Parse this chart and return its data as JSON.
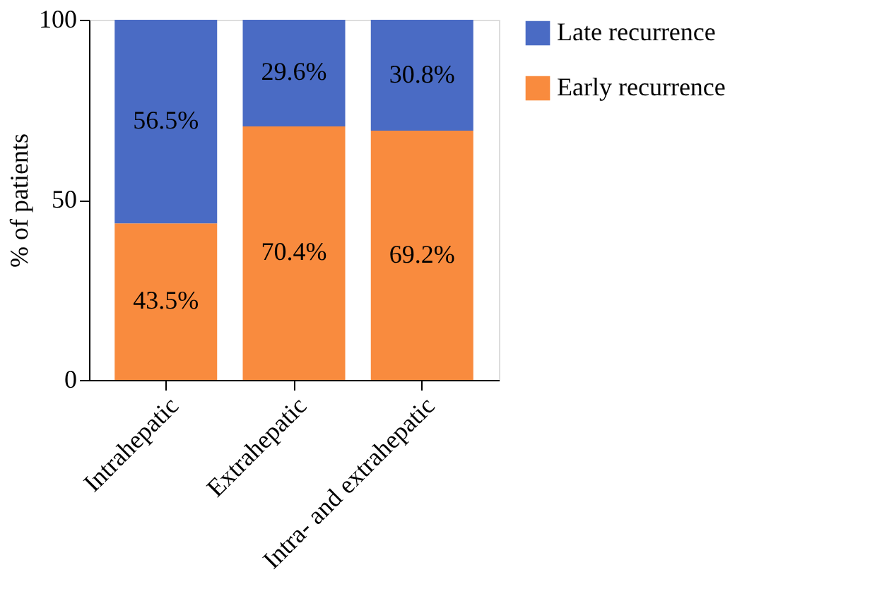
{
  "chart_data": {
    "type": "bar",
    "stacked": true,
    "ylabel": "% of patients",
    "categories": [
      "Intrahepatic",
      "Extrahepatic",
      "Intra- and extrahepatic"
    ],
    "series": [
      {
        "name": "Early recurrence",
        "color": "#f98b3e",
        "values": [
          43.5,
          70.4,
          69.2
        ],
        "value_labels": [
          "43.5%",
          "70.4%",
          "69.2%"
        ]
      },
      {
        "name": "Late recurrence",
        "color": "#4a6bc4",
        "values": [
          56.5,
          29.6,
          30.8
        ],
        "value_labels": [
          "56.5%",
          "29.6%",
          "30.8%"
        ]
      }
    ],
    "ylim": [
      0,
      100
    ],
    "yticks": [
      0,
      50,
      100
    ],
    "grid": false,
    "legend": "right"
  }
}
